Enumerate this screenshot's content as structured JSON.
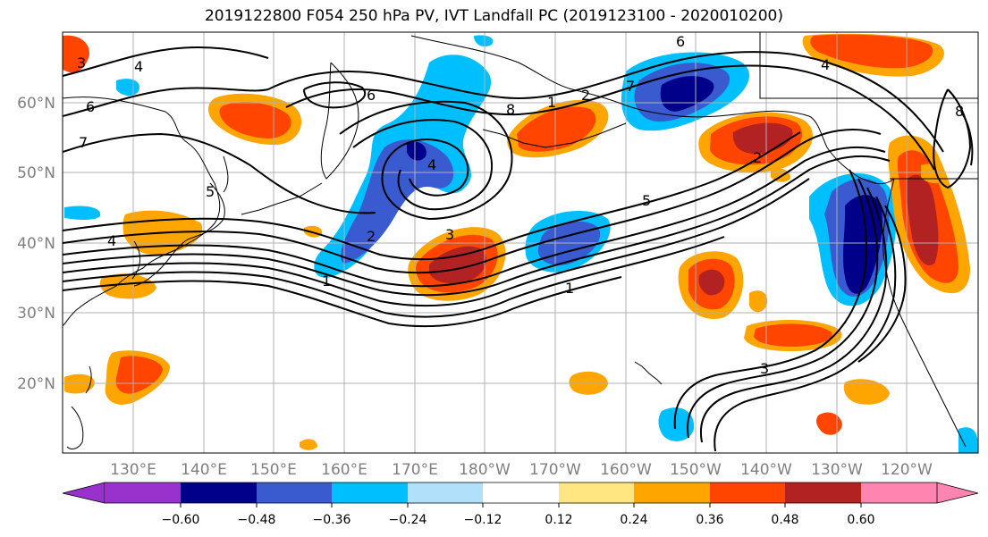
{
  "title": "2019122800 F054 250 hPa PV, IVT Landfall PC (2019123100 - 2020010200)",
  "lat_labels": [
    "60°N",
    "50°N",
    "40°N",
    "30°N",
    "20°N"
  ],
  "lon_labels": [
    "130°E",
    "140°E",
    "150°E",
    "160°E",
    "170°E",
    "180°W",
    "170°W",
    "160°W",
    "150°W",
    "140°W",
    "130°W",
    "120°W"
  ],
  "colorbar": {
    "tick_labels": [
      "−0.60",
      "−0.48",
      "−0.36",
      "−0.24",
      "−0.12",
      "0.12",
      "0.24",
      "0.36",
      "0.48",
      "0.60"
    ],
    "colors": [
      "#9932cc",
      "#00008b",
      "#3a5bd0",
      "#00bfff",
      "#b0e0fa",
      "#ffffff",
      "#ffe680",
      "#ffa500",
      "#ff4500",
      "#b22222",
      "#ff85b0"
    ]
  },
  "contour_labels": [
    "3",
    "4",
    "6",
    "7",
    "5",
    "4",
    "1",
    "2",
    "6",
    "4",
    "8",
    "1",
    "2",
    "3",
    "7",
    "6",
    "5",
    "1",
    "3",
    "4",
    "2",
    "8"
  ],
  "colors": {
    "axis_label": "#7f7f7f",
    "grid": "#b0b0b0",
    "coast": "#000000",
    "contour": "#000000"
  }
}
